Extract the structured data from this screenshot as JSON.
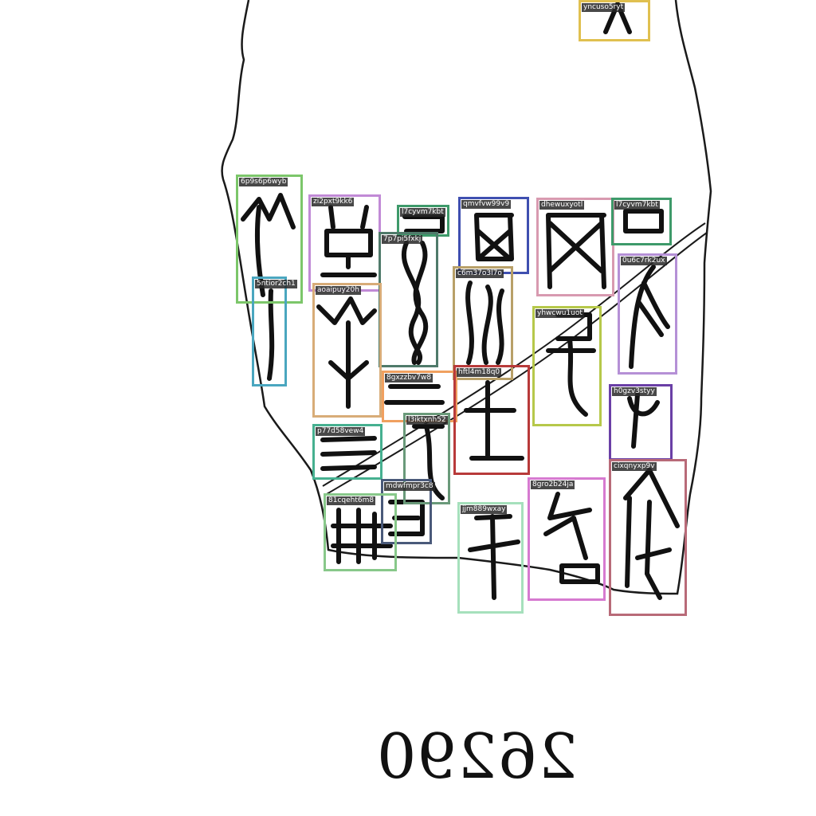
{
  "catalog_number": "26290",
  "rubbing": {
    "outline_color": "#1a1a1a",
    "ink_color": "#111111",
    "boxes": [
      {
        "label": "yncuso5ryt",
        "color": "#e0c050"
      },
      {
        "label": "6p9s6p6wyb",
        "color": "#7cc66a"
      },
      {
        "label": "zi2pxt9kk6",
        "color": "#c18ad6"
      },
      {
        "label": "l7cyvm7kbt",
        "color": "#3e9a6a"
      },
      {
        "label": "qmvfvw99v9",
        "color": "#3f4fb0"
      },
      {
        "label": "dhewuxyotl",
        "color": "#d89ab0"
      },
      {
        "label": "l7cyvm7kbt",
        "color": "#3e9a6a"
      },
      {
        "label": "7p7pi5fxkj",
        "color": "#4f7a6a"
      },
      {
        "label": "5ntior2ch1",
        "color": "#4aa6bf"
      },
      {
        "label": "aoaipuy20h",
        "color": "#d8ac78"
      },
      {
        "label": "c6m37o3l7o",
        "color": "#b8a068"
      },
      {
        "label": "0u6c7rk2ux",
        "color": "#b590d6"
      },
      {
        "label": "yhwcwu1uot",
        "color": "#b6c84a"
      },
      {
        "label": "8gxzzbv7w8",
        "color": "#f0a060"
      },
      {
        "label": "hftl4m18q0",
        "color": "#b83a3a"
      },
      {
        "label": "h0gzv3styy",
        "color": "#6a3fa6"
      },
      {
        "label": "l3iktxnh52",
        "color": "#6a9a7a"
      },
      {
        "label": "p77d58vew4",
        "color": "#46b090"
      },
      {
        "label": "cixqnyxp9v",
        "color": "#b86a78"
      },
      {
        "label": "mdwfmpr3c8",
        "color": "#4a5a7a"
      },
      {
        "label": "8gro2b24ja",
        "color": "#d67ad0"
      },
      {
        "label": "81cqeht6m8",
        "color": "#88c88a"
      },
      {
        "label": "jjm889wxay",
        "color": "#a6e0bc"
      }
    ]
  }
}
